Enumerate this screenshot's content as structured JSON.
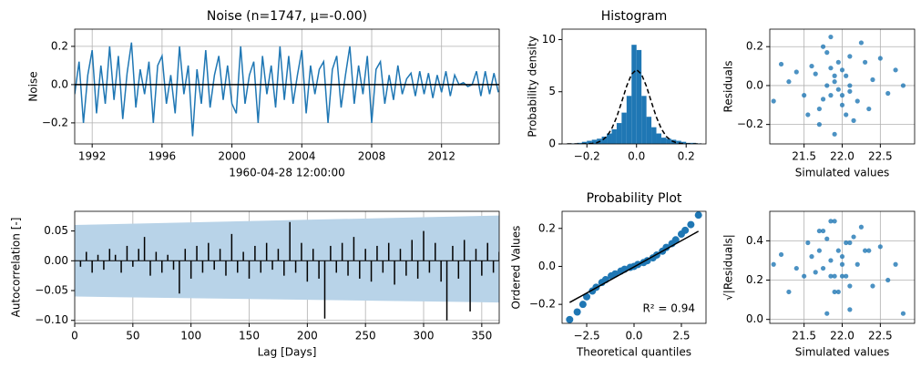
{
  "chart_data": [
    {
      "type": "line",
      "title": "Noise (n=1747, μ=-0.00)",
      "xlabel": "1960-04-28 12:00:00",
      "ylabel": "Noise",
      "color": "#1f77b4",
      "grid": true,
      "hline": 0,
      "x": [
        1991,
        1991.25,
        1991.5,
        1991.75,
        1992,
        1992.25,
        1992.5,
        1992.75,
        1993,
        1993.25,
        1993.5,
        1993.75,
        1994,
        1994.25,
        1994.5,
        1994.75,
        1995,
        1995.25,
        1995.5,
        1995.75,
        1996,
        1996.25,
        1996.5,
        1996.75,
        1997,
        1997.25,
        1997.5,
        1997.75,
        1998,
        1998.25,
        1998.5,
        1998.75,
        1999,
        1999.25,
        1999.5,
        1999.75,
        2000,
        2000.25,
        2000.5,
        2000.75,
        2001,
        2001.25,
        2001.5,
        2001.75,
        2002,
        2002.25,
        2002.5,
        2002.75,
        2003,
        2003.25,
        2003.5,
        2003.75,
        2004,
        2004.25,
        2004.5,
        2004.75,
        2005,
        2005.25,
        2005.5,
        2005.75,
        2006,
        2006.25,
        2006.5,
        2006.75,
        2007,
        2007.25,
        2007.5,
        2007.75,
        2008,
        2008.25,
        2008.5,
        2008.75,
        2009,
        2009.25,
        2009.5,
        2009.75,
        2010,
        2010.25,
        2010.5,
        2010.75,
        2011,
        2011.25,
        2011.5,
        2011.75,
        2012,
        2012.25,
        2012.5,
        2012.75,
        2013,
        2013.25,
        2013.5,
        2013.75,
        2014,
        2014.25,
        2014.5,
        2014.75,
        2015,
        2015.25
      ],
      "values": [
        -0.05,
        0.12,
        -0.2,
        0.05,
        0.18,
        -0.15,
        0.1,
        -0.1,
        0.2,
        -0.08,
        0.15,
        -0.18,
        0.06,
        0.22,
        -0.12,
        0.08,
        -0.05,
        0.12,
        -0.2,
        0.1,
        0.15,
        -0.1,
        0.05,
        -0.15,
        0.2,
        -0.05,
        0.1,
        -0.27,
        0.08,
        -0.1,
        0.18,
        -0.12,
        0.05,
        0.15,
        -0.08,
        0.1,
        -0.1,
        -0.15,
        0.2,
        -0.1,
        0.05,
        0.12,
        -0.2,
        0.15,
        -0.05,
        0.1,
        -0.12,
        0.2,
        -0.08,
        0.15,
        -0.1,
        0.05,
        0.18,
        -0.15,
        0.1,
        -0.05,
        0.08,
        0.12,
        -0.2,
        0.08,
        0.15,
        -0.12,
        0.05,
        0.2,
        -0.1,
        0.1,
        -0.05,
        0.15,
        -0.2,
        0.08,
        0.12,
        -0.1,
        0.05,
        -0.08,
        0.1,
        -0.05,
        0.03,
        0.06,
        -0.06,
        0.07,
        -0.05,
        0.06,
        -0.07,
        0.05,
        -0.04,
        0.07,
        -0.06,
        0.05,
        0.0,
        0.01,
        -0.01,
        0.0,
        0.07,
        -0.06,
        0.07,
        -0.05,
        0.06,
        -0.04
      ],
      "xlim": [
        1991,
        2015.3
      ],
      "xticks": [
        1992,
        1996,
        2000,
        2004,
        2008,
        2012
      ],
      "ylim": [
        -0.31,
        0.29
      ],
      "yticks": [
        {
          "value": -0.2,
          "label": "−0.2"
        },
        {
          "value": 0,
          "label": "0.0"
        },
        0.2
      ]
    },
    {
      "type": "histogram",
      "title": "Histogram",
      "ylabel": "Probability density",
      "color": "#1f77b4",
      "grid": false,
      "bins": [
        -0.28,
        -0.26,
        -0.24,
        -0.22,
        -0.2,
        -0.18,
        -0.16,
        -0.14,
        -0.12,
        -0.1,
        -0.08,
        -0.06,
        -0.04,
        -0.02,
        0,
        0.02,
        0.04,
        0.06,
        0.08,
        0.1,
        0.12,
        0.14,
        0.16,
        0.18,
        0.2,
        0.22,
        0.24,
        0.26
      ],
      "counts": [
        0.05,
        0.05,
        0.1,
        0.2,
        0.3,
        0.4,
        0.5,
        0.7,
        1.0,
        1.4,
        2.0,
        3.0,
        4.6,
        9.5,
        9.0,
        4.6,
        2.6,
        1.6,
        1.0,
        0.6,
        0.5,
        0.4,
        0.3,
        0.2,
        0.1,
        0.1,
        0.05
      ],
      "curve": {
        "x": [
          -0.28,
          -0.26,
          -0.24,
          -0.22,
          -0.2,
          -0.18,
          -0.16,
          -0.14,
          -0.12,
          -0.1,
          -0.08,
          -0.06,
          -0.04,
          -0.02,
          0,
          0.02,
          0.04,
          0.06,
          0.08,
          0.1,
          0.12,
          0.14,
          0.16,
          0.18,
          0.2,
          0.22,
          0.24,
          0.26
        ],
        "y": [
          0,
          0,
          0,
          0,
          0.01,
          0.04,
          0.12,
          0.31,
          0.71,
          1.45,
          2.57,
          4.01,
          5.52,
          6.68,
          7.12,
          6.68,
          5.52,
          4.01,
          2.57,
          1.45,
          0.71,
          0.31,
          0.12,
          0.04,
          0.01,
          0,
          0,
          0
        ]
      },
      "xlim": [
        -0.3,
        0.28
      ],
      "xticks": [
        {
          "value": -0.2,
          "label": "−0.2"
        },
        {
          "value": 0,
          "label": "0.0"
        },
        0.2
      ],
      "ylim": [
        0,
        11
      ],
      "yticks": [
        0,
        5,
        10
      ]
    },
    {
      "type": "scatter",
      "xlabel": "Simulated values",
      "ylabel": "Residuals",
      "color": "#1f77b4",
      "grid": true,
      "x": [
        21.9,
        21.85,
        22.0,
        21.7,
        22.1,
        21.95,
        21.6,
        22.2,
        21.8,
        22.05,
        21.75,
        22.15,
        21.9,
        22.3,
        21.5,
        22.4,
        21.65,
        22.0,
        21.85,
        22.25,
        21.4,
        22.6,
        21.95,
        21.7,
        22.1,
        21.3,
        22.8,
        21.1,
        22.5,
        21.55,
        22.35,
        21.8,
        22.05,
        21.2,
        22.7,
        21.9,
        22.0,
        21.85,
        22.1,
        21.75
      ],
      "y": [
        0.02,
        -0.05,
        0.08,
        -0.12,
        0.15,
        -0.02,
        0.1,
        -0.08,
        0.0,
        0.05,
        0.2,
        -0.18,
        -0.25,
        0.12,
        -0.05,
        0.03,
        0.06,
        -0.1,
        0.25,
        0.22,
        0.07,
        -0.04,
        0.12,
        -0.2,
        -0.03,
        0.02,
        0.0,
        -0.08,
        0.14,
        -0.15,
        -0.12,
        0.17,
        -0.15,
        0.11,
        0.08,
        0.05,
        -0.05,
        0.09,
        0.0,
        -0.07
      ],
      "xlim": [
        21.05,
        22.95
      ],
      "xticks": [
        21.5,
        {
          "value": 22,
          "label": "22.0"
        },
        22.5
      ],
      "ylim": [
        -0.3,
        0.29
      ],
      "yticks": [
        {
          "value": -0.2,
          "label": "−0.2"
        },
        {
          "value": 0,
          "label": "0.0"
        },
        0.2
      ]
    },
    {
      "type": "bar",
      "xlabel": "Lag [Days]",
      "ylabel": "Autocorrelation [-]",
      "color": "#000000",
      "band_color": "#b8d3e8",
      "grid": true,
      "hline": 0,
      "x": [
        5,
        10,
        15,
        20,
        25,
        30,
        35,
        40,
        45,
        50,
        55,
        60,
        65,
        70,
        75,
        80,
        85,
        90,
        95,
        100,
        105,
        110,
        115,
        120,
        125,
        130,
        135,
        140,
        145,
        150,
        155,
        160,
        165,
        170,
        175,
        180,
        185,
        190,
        195,
        200,
        205,
        210,
        215,
        220,
        225,
        230,
        235,
        240,
        245,
        250,
        255,
        260,
        265,
        270,
        275,
        280,
        285,
        290,
        295,
        300,
        305,
        310,
        315,
        320,
        325,
        330,
        335,
        340,
        345,
        350,
        355,
        360,
        365
      ],
      "values": [
        -0.01,
        0.015,
        -0.02,
        0.01,
        -0.015,
        0.02,
        0.01,
        -0.02,
        0.025,
        -0.01,
        0.02,
        0.04,
        -0.025,
        0.015,
        -0.02,
        0.01,
        -0.015,
        -0.055,
        0.02,
        -0.03,
        0.025,
        -0.02,
        0.03,
        -0.015,
        0.02,
        -0.025,
        0.045,
        -0.02,
        0.015,
        -0.03,
        0.025,
        -0.02,
        0.03,
        -0.015,
        0.02,
        -0.025,
        0.065,
        -0.02,
        0.03,
        -0.035,
        0.02,
        -0.03,
        -0.097,
        0.025,
        -0.02,
        0.03,
        -0.025,
        0.04,
        -0.03,
        0.02,
        -0.035,
        0.025,
        -0.02,
        0.03,
        -0.04,
        0.02,
        -0.025,
        0.035,
        -0.03,
        0.05,
        -0.02,
        0.03,
        -0.035,
        -0.1,
        0.025,
        -0.03,
        0.035,
        -0.085,
        0.02,
        -0.025,
        0.03,
        -0.02,
        0.015
      ],
      "band": {
        "x": [
          0,
          365
        ],
        "upper": [
          0.06,
          0.076
        ],
        "lower": [
          -0.06,
          -0.07
        ]
      },
      "xlim": [
        0,
        365
      ],
      "xticks": [
        0,
        50,
        100,
        150,
        200,
        250,
        300,
        350
      ],
      "ylim": [
        -0.105,
        0.083
      ],
      "yticks": [
        {
          "value": -0.1,
          "label": "−0.10"
        },
        {
          "value": -0.05,
          "label": "−0.05"
        },
        {
          "value": 0,
          "label": "0.00"
        },
        0.05
      ]
    },
    {
      "type": "probability",
      "title": "Probability Plot",
      "xlabel": "Theoretical quantiles",
      "ylabel": "Ordered Values",
      "color": "#1f77b4",
      "grid": false,
      "annotation": "R² = 0.94",
      "x": [
        -3.4,
        -3.0,
        -2.7,
        -2.5,
        -2.2,
        -2.0,
        -1.7,
        -1.5,
        -1.2,
        -1.0,
        -0.7,
        -0.5,
        -0.2,
        0,
        0.2,
        0.5,
        0.7,
        1.0,
        1.2,
        1.5,
        1.7,
        2.0,
        2.2,
        2.5,
        2.7,
        3.0,
        3.4
      ],
      "y": [
        -0.28,
        -0.24,
        -0.2,
        -0.16,
        -0.13,
        -0.11,
        -0.085,
        -0.07,
        -0.05,
        -0.04,
        -0.025,
        -0.015,
        -0.005,
        0,
        0.01,
        0.02,
        0.03,
        0.045,
        0.06,
        0.08,
        0.1,
        0.12,
        0.14,
        0.17,
        0.19,
        0.22,
        0.27
      ],
      "fit": {
        "x": [
          -3.4,
          3.4
        ],
        "y": [
          -0.19,
          0.185
        ]
      },
      "xlim": [
        -3.8,
        3.8
      ],
      "xticks": [
        {
          "value": -2.5,
          "label": "−2.5"
        },
        {
          "value": 0,
          "label": "0.0"
        },
        2.5
      ],
      "ylim": [
        -0.3,
        0.29
      ],
      "yticks": [
        {
          "value": -0.2,
          "label": "−0.2"
        },
        {
          "value": 0,
          "label": "0.0"
        },
        0.2
      ]
    },
    {
      "type": "scatter",
      "xlabel": "Simulated values",
      "ylabel": "√|Residuals|",
      "color": "#1f77b4",
      "grid": true,
      "x": [
        21.9,
        21.85,
        22.0,
        21.7,
        22.1,
        21.95,
        21.6,
        22.2,
        21.8,
        22.05,
        21.75,
        22.15,
        21.9,
        22.3,
        21.5,
        22.4,
        21.65,
        22.0,
        21.85,
        22.25,
        21.4,
        22.6,
        21.95,
        21.7,
        22.1,
        21.3,
        22.8,
        21.1,
        22.5,
        21.55,
        22.35,
        21.8,
        22.05,
        21.2,
        22.7,
        21.9,
        22.0,
        21.85,
        22.1,
        21.75
      ],
      "y": [
        0.14,
        0.22,
        0.28,
        0.35,
        0.39,
        0.14,
        0.32,
        0.28,
        0.03,
        0.22,
        0.45,
        0.42,
        0.5,
        0.35,
        0.22,
        0.17,
        0.24,
        0.32,
        0.5,
        0.47,
        0.26,
        0.2,
        0.35,
        0.45,
        0.17,
        0.14,
        0.03,
        0.28,
        0.37,
        0.39,
        0.35,
        0.41,
        0.39,
        0.33,
        0.28,
        0.22,
        0.22,
        0.3,
        0.05,
        0.26
      ],
      "xlim": [
        21.05,
        22.95
      ],
      "xticks": [
        21.5,
        {
          "value": 22,
          "label": "22.0"
        },
        22.5
      ],
      "ylim": [
        -0.02,
        0.55
      ],
      "yticks": [
        {
          "value": 0,
          "label": "0.0"
        },
        0.2,
        0.4
      ]
    }
  ]
}
